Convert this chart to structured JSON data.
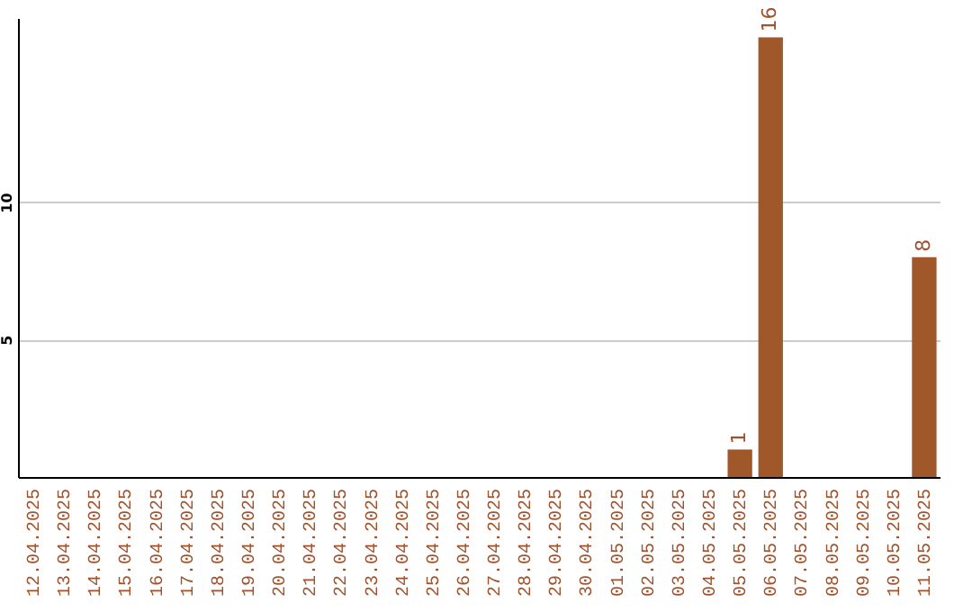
{
  "chart_data": {
    "type": "bar",
    "categories": [
      "12.04.2025",
      "13.04.2025",
      "14.04.2025",
      "15.04.2025",
      "16.04.2025",
      "17.04.2025",
      "18.04.2025",
      "19.04.2025",
      "20.04.2025",
      "21.04.2025",
      "22.04.2025",
      "23.04.2025",
      "24.04.2025",
      "25.04.2025",
      "26.04.2025",
      "27.04.2025",
      "28.04.2025",
      "29.04.2025",
      "30.04.2025",
      "01.05.2025",
      "02.05.2025",
      "03.05.2025",
      "04.05.2025",
      "05.05.2025",
      "06.05.2025",
      "07.05.2025",
      "08.05.2025",
      "09.05.2025",
      "10.05.2025",
      "11.05.2025"
    ],
    "values": [
      0,
      0,
      0,
      0,
      0,
      0,
      0,
      0,
      0,
      0,
      0,
      0,
      0,
      0,
      0,
      0,
      0,
      0,
      0,
      0,
      0,
      0,
      0,
      1,
      16,
      0,
      0,
      0,
      0,
      8
    ],
    "value_labels": [
      null,
      null,
      null,
      null,
      null,
      null,
      null,
      null,
      null,
      null,
      null,
      null,
      null,
      null,
      null,
      null,
      null,
      null,
      null,
      null,
      null,
      null,
      null,
      "1",
      "16",
      null,
      null,
      null,
      null,
      "8"
    ],
    "color": "#a0572a",
    "ylim": [
      0,
      16.7
    ],
    "yticks": [
      5,
      10
    ],
    "grid": "y"
  }
}
